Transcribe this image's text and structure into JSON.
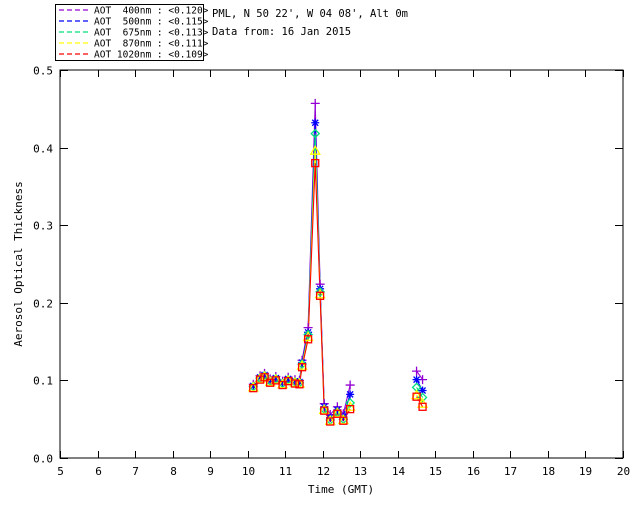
{
  "header": {
    "site_line": "PML, N 50 22', W 04 08', Alt 0m",
    "date_line": "Data from: 16 Jan 2015"
  },
  "legend": {
    "entries": [
      {
        "label": "AOT  400nm : <0.120>",
        "color": "#9400D3"
      },
      {
        "label": "AOT  500nm : <0.115>",
        "color": "#0000FF"
      },
      {
        "label": "AOT  675nm : <0.113>",
        "color": "#00E07E"
      },
      {
        "label": "AOT  870nm : <0.111>",
        "color": "#FFFF00"
      },
      {
        "label": "AOT 1020nm : <0.109>",
        "color": "#FF0000"
      }
    ]
  },
  "chart_data": {
    "type": "line",
    "title": "",
    "xlabel": "Time (GMT)",
    "ylabel": "Aerosol Optical Thickness",
    "xlim": [
      5,
      20
    ],
    "ylim": [
      0.0,
      0.5
    ],
    "xticks": [
      5,
      6,
      7,
      8,
      9,
      10,
      11,
      12,
      13,
      14,
      15,
      16,
      17,
      18,
      19,
      20
    ],
    "yticks": [
      0.0,
      0.1,
      0.2,
      0.3,
      0.4,
      0.5
    ],
    "grid": false,
    "legend_position": "outside-top-left",
    "series": [
      {
        "name": "AOT 400nm",
        "mean_label": "<0.120>",
        "color": "#9400D3",
        "marker": "plus",
        "segments": [
          [
            [
              10.15,
              0.095
            ],
            [
              10.33,
              0.106
            ],
            [
              10.45,
              0.109
            ],
            [
              10.6,
              0.102
            ],
            [
              10.75,
              0.105
            ],
            [
              10.93,
              0.099
            ],
            [
              11.08,
              0.104
            ],
            [
              11.26,
              0.101
            ],
            [
              11.38,
              0.1
            ],
            [
              11.45,
              0.126
            ],
            [
              11.61,
              0.168
            ],
            [
              11.8,
              0.457
            ],
            [
              11.93,
              0.224
            ],
            [
              12.04,
              0.07
            ],
            [
              12.2,
              0.056
            ],
            [
              12.39,
              0.066
            ],
            [
              12.55,
              0.057
            ],
            [
              12.73,
              0.094
            ]
          ],
          [
            [
              14.5,
              0.112
            ],
            [
              14.66,
              0.101
            ]
          ]
        ]
      },
      {
        "name": "AOT 500nm",
        "mean_label": "<0.115>",
        "color": "#0000FF",
        "marker": "asterisk",
        "segments": [
          [
            [
              10.15,
              0.093
            ],
            [
              10.33,
              0.104
            ],
            [
              10.45,
              0.107
            ],
            [
              10.6,
              0.1
            ],
            [
              10.75,
              0.103
            ],
            [
              10.93,
              0.097
            ],
            [
              11.08,
              0.102
            ],
            [
              11.26,
              0.099
            ],
            [
              11.38,
              0.098
            ],
            [
              11.45,
              0.123
            ],
            [
              11.61,
              0.162
            ],
            [
              11.8,
              0.432
            ],
            [
              11.93,
              0.218
            ],
            [
              12.04,
              0.066
            ],
            [
              12.2,
              0.052
            ],
            [
              12.39,
              0.062
            ],
            [
              12.55,
              0.053
            ],
            [
              12.73,
              0.082
            ]
          ],
          [
            [
              14.5,
              0.101
            ],
            [
              14.66,
              0.087
            ]
          ]
        ]
      },
      {
        "name": "AOT 675nm",
        "mean_label": "<0.113>",
        "color": "#00E07E",
        "marker": "diamond",
        "segments": [
          [
            [
              10.15,
              0.092
            ],
            [
              10.33,
              0.103
            ],
            [
              10.45,
              0.106
            ],
            [
              10.6,
              0.099
            ],
            [
              10.75,
              0.102
            ],
            [
              10.93,
              0.096
            ],
            [
              11.08,
              0.101
            ],
            [
              11.26,
              0.098
            ],
            [
              11.38,
              0.097
            ],
            [
              11.45,
              0.121
            ],
            [
              11.61,
              0.159
            ],
            [
              11.8,
              0.418
            ],
            [
              11.93,
              0.214
            ],
            [
              12.04,
              0.063
            ],
            [
              12.2,
              0.049
            ],
            [
              12.39,
              0.059
            ],
            [
              12.55,
              0.05
            ],
            [
              12.73,
              0.071
            ]
          ],
          [
            [
              14.5,
              0.091
            ],
            [
              14.66,
              0.078
            ]
          ]
        ]
      },
      {
        "name": "AOT 870nm",
        "mean_label": "<0.111>",
        "color": "#FFFF00",
        "marker": "triangle",
        "segments": [
          [
            [
              10.15,
              0.091
            ],
            [
              10.33,
              0.102
            ],
            [
              10.45,
              0.105
            ],
            [
              10.6,
              0.098
            ],
            [
              10.75,
              0.101
            ],
            [
              10.93,
              0.095
            ],
            [
              11.08,
              0.1
            ],
            [
              11.26,
              0.097
            ],
            [
              11.38,
              0.096
            ],
            [
              11.45,
              0.119
            ],
            [
              11.61,
              0.156
            ],
            [
              11.8,
              0.396
            ],
            [
              11.93,
              0.211
            ],
            [
              12.04,
              0.062
            ],
            [
              12.2,
              0.048
            ],
            [
              12.39,
              0.058
            ],
            [
              12.55,
              0.049
            ],
            [
              12.73,
              0.066
            ]
          ],
          [
            [
              14.5,
              0.081
            ],
            [
              14.66,
              0.07
            ]
          ]
        ]
      },
      {
        "name": "AOT 1020nm",
        "mean_label": "<0.109>",
        "color": "#FF0000",
        "marker": "square",
        "segments": [
          [
            [
              10.15,
              0.09
            ],
            [
              10.33,
              0.101
            ],
            [
              10.45,
              0.104
            ],
            [
              10.6,
              0.097
            ],
            [
              10.75,
              0.1
            ],
            [
              10.93,
              0.094
            ],
            [
              11.08,
              0.099
            ],
            [
              11.26,
              0.096
            ],
            [
              11.38,
              0.095
            ],
            [
              11.45,
              0.117
            ],
            [
              11.61,
              0.153
            ],
            [
              11.8,
              0.38
            ],
            [
              11.93,
              0.209
            ],
            [
              12.04,
              0.061
            ],
            [
              12.2,
              0.047
            ],
            [
              12.39,
              0.057
            ],
            [
              12.55,
              0.048
            ],
            [
              12.73,
              0.063
            ]
          ],
          [
            [
              14.5,
              0.079
            ],
            [
              14.66,
              0.066
            ]
          ]
        ]
      }
    ]
  }
}
